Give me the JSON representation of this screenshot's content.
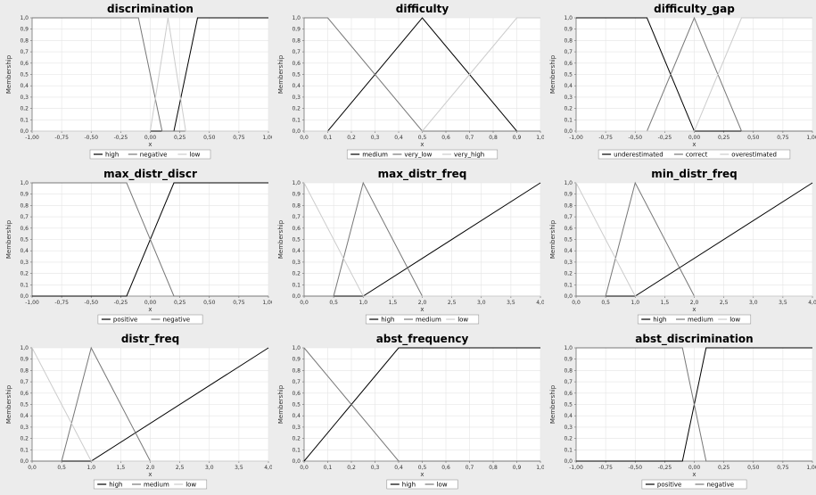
{
  "chart_data": [
    {
      "type": "line",
      "title": "discrimination",
      "xlabel": "x",
      "ylabel": "Membership",
      "xlim": [
        -1,
        1
      ],
      "ylim": [
        0,
        1
      ],
      "xticks": [
        "-1,00",
        "-0,75",
        "-0,50",
        "-0,25",
        "0,00",
        "0,25",
        "0,50",
        "0,75",
        "1,00"
      ],
      "yticks": [
        "0,0",
        "0,1",
        "0,2",
        "0,3",
        "0,4",
        "0,5",
        "0,6",
        "0,7",
        "0,8",
        "0,9",
        "1,0"
      ],
      "grid": true,
      "legend": "bottom",
      "series": [
        {
          "name": "high",
          "color": "#000000",
          "points": [
            [
              -1,
              0
            ],
            [
              0.2,
              0
            ],
            [
              0.4,
              1
            ],
            [
              1,
              1
            ]
          ]
        },
        {
          "name": "negative",
          "color": "#777777",
          "points": [
            [
              -1,
              1
            ],
            [
              -0.1,
              1
            ],
            [
              0.1,
              0
            ],
            [
              1,
              0
            ]
          ]
        },
        {
          "name": "low",
          "color": "#cccccc",
          "points": [
            [
              -1,
              0
            ],
            [
              0,
              0
            ],
            [
              0.15,
              1
            ],
            [
              0.3,
              0
            ],
            [
              1,
              0
            ]
          ]
        }
      ]
    },
    {
      "type": "line",
      "title": "difficulty",
      "xlabel": "x",
      "ylabel": "Membership",
      "xlim": [
        0,
        1
      ],
      "ylim": [
        0,
        1
      ],
      "xticks": [
        "0,0",
        "0,1",
        "0,2",
        "0,3",
        "0,4",
        "0,5",
        "0,6",
        "0,7",
        "0,8",
        "0,9",
        "1,0"
      ],
      "yticks": [
        "0,0",
        "0,1",
        "0,2",
        "0,3",
        "0,4",
        "0,5",
        "0,6",
        "0,7",
        "0,8",
        "0,9",
        "1,0"
      ],
      "grid": true,
      "legend": "bottom",
      "series": [
        {
          "name": "medium",
          "color": "#000000",
          "points": [
            [
              0,
              0
            ],
            [
              0.1,
              0
            ],
            [
              0.5,
              1
            ],
            [
              0.9,
              0
            ],
            [
              1,
              0
            ]
          ]
        },
        {
          "name": "very_low",
          "color": "#777777",
          "points": [
            [
              0,
              1
            ],
            [
              0.1,
              1
            ],
            [
              0.5,
              0
            ],
            [
              1,
              0
            ]
          ]
        },
        {
          "name": "very_high",
          "color": "#cccccc",
          "points": [
            [
              0,
              0
            ],
            [
              0.5,
              0
            ],
            [
              0.9,
              1
            ],
            [
              1,
              1
            ]
          ]
        }
      ]
    },
    {
      "type": "line",
      "title": "difficulty_gap",
      "xlabel": "x",
      "ylabel": "Membership",
      "xlim": [
        -1,
        1
      ],
      "ylim": [
        0,
        1
      ],
      "xticks": [
        "-1,00",
        "-0,75",
        "-0,50",
        "-0,25",
        "0,00",
        "0,25",
        "0,50",
        "0,75",
        "1,00"
      ],
      "yticks": [
        "0,0",
        "0,1",
        "0,2",
        "0,3",
        "0,4",
        "0,5",
        "0,6",
        "0,7",
        "0,8",
        "0,9",
        "1,0"
      ],
      "grid": true,
      "legend": "bottom",
      "series": [
        {
          "name": "underestimated",
          "color": "#000000",
          "points": [
            [
              -1,
              1
            ],
            [
              -0.4,
              1
            ],
            [
              0,
              0
            ],
            [
              1,
              0
            ]
          ]
        },
        {
          "name": "correct",
          "color": "#777777",
          "points": [
            [
              -1,
              0
            ],
            [
              -0.4,
              0
            ],
            [
              0,
              1
            ],
            [
              0.4,
              0
            ],
            [
              1,
              0
            ]
          ]
        },
        {
          "name": "overestimated",
          "color": "#cccccc",
          "points": [
            [
              -1,
              0
            ],
            [
              0,
              0
            ],
            [
              0.4,
              1
            ],
            [
              1,
              1
            ]
          ]
        }
      ]
    },
    {
      "type": "line",
      "title": "max_distr_discr",
      "xlabel": "x",
      "ylabel": "Membership",
      "xlim": [
        -1,
        1
      ],
      "ylim": [
        0,
        1
      ],
      "xticks": [
        "-1,00",
        "-0,75",
        "-0,50",
        "-0,25",
        "0,00",
        "0,25",
        "0,50",
        "0,75",
        "1,00"
      ],
      "yticks": [
        "0,0",
        "0,1",
        "0,2",
        "0,3",
        "0,4",
        "0,5",
        "0,6",
        "0,7",
        "0,8",
        "0,9",
        "1,0"
      ],
      "grid": true,
      "legend": "bottom",
      "series": [
        {
          "name": "positive",
          "color": "#000000",
          "points": [
            [
              -1,
              0
            ],
            [
              -0.2,
              0
            ],
            [
              0.2,
              1
            ],
            [
              1,
              1
            ]
          ]
        },
        {
          "name": "negative",
          "color": "#777777",
          "points": [
            [
              -1,
              1
            ],
            [
              -0.2,
              1
            ],
            [
              0.2,
              0
            ],
            [
              1,
              0
            ]
          ]
        }
      ]
    },
    {
      "type": "line",
      "title": "max_distr_freq",
      "xlabel": "x",
      "ylabel": "Membership",
      "xlim": [
        0,
        4
      ],
      "ylim": [
        0,
        1
      ],
      "xticks": [
        "0,0",
        "0,5",
        "1,0",
        "1,5",
        "2,0",
        "2,5",
        "3,0",
        "3,5",
        "4,0"
      ],
      "yticks": [
        "0,0",
        "0,1",
        "0,2",
        "0,3",
        "0,4",
        "0,5",
        "0,6",
        "0,7",
        "0,8",
        "0,9",
        "1,0"
      ],
      "grid": true,
      "legend": "bottom",
      "series": [
        {
          "name": "high",
          "color": "#000000",
          "points": [
            [
              0,
              0
            ],
            [
              1,
              0
            ],
            [
              4,
              1
            ]
          ]
        },
        {
          "name": "medium",
          "color": "#777777",
          "points": [
            [
              0,
              0
            ],
            [
              0.5,
              0
            ],
            [
              1,
              1
            ],
            [
              2,
              0
            ],
            [
              4,
              0
            ]
          ]
        },
        {
          "name": "low",
          "color": "#cccccc",
          "points": [
            [
              0,
              1
            ],
            [
              1,
              0
            ],
            [
              4,
              0
            ]
          ]
        }
      ]
    },
    {
      "type": "line",
      "title": "min_distr_freq",
      "xlabel": "x",
      "ylabel": "Membership",
      "xlim": [
        0,
        4
      ],
      "ylim": [
        0,
        1
      ],
      "xticks": [
        "0,0",
        "0,5",
        "1,0",
        "1,5",
        "2,0",
        "2,5",
        "3,0",
        "3,5",
        "4,0"
      ],
      "yticks": [
        "0,0",
        "0,1",
        "0,2",
        "0,3",
        "0,4",
        "0,5",
        "0,6",
        "0,7",
        "0,8",
        "0,9",
        "1,0"
      ],
      "grid": true,
      "legend": "bottom",
      "series": [
        {
          "name": "high",
          "color": "#000000",
          "points": [
            [
              0,
              0
            ],
            [
              1,
              0
            ],
            [
              4,
              1
            ]
          ]
        },
        {
          "name": "medium",
          "color": "#777777",
          "points": [
            [
              0,
              0
            ],
            [
              0.5,
              0
            ],
            [
              1,
              1
            ],
            [
              2,
              0
            ],
            [
              4,
              0
            ]
          ]
        },
        {
          "name": "low",
          "color": "#cccccc",
          "points": [
            [
              0,
              1
            ],
            [
              1,
              0
            ],
            [
              4,
              0
            ]
          ]
        }
      ]
    },
    {
      "type": "line",
      "title": "distr_freq",
      "xlabel": "x",
      "ylabel": "Membership",
      "xlim": [
        0,
        4
      ],
      "ylim": [
        0,
        1
      ],
      "xticks": [
        "0,0",
        "0,5",
        "1,0",
        "1,5",
        "2,0",
        "2,5",
        "3,0",
        "3,5",
        "4,0"
      ],
      "yticks": [
        "0,0",
        "0,1",
        "0,2",
        "0,3",
        "0,4",
        "0,5",
        "0,6",
        "0,7",
        "0,8",
        "0,9",
        "1,0"
      ],
      "grid": true,
      "legend": "bottom",
      "series": [
        {
          "name": "high",
          "color": "#000000",
          "points": [
            [
              0,
              0
            ],
            [
              1,
              0
            ],
            [
              4,
              1
            ]
          ]
        },
        {
          "name": "medium",
          "color": "#777777",
          "points": [
            [
              0,
              0
            ],
            [
              0.5,
              0
            ],
            [
              1,
              1
            ],
            [
              2,
              0
            ],
            [
              4,
              0
            ]
          ]
        },
        {
          "name": "low",
          "color": "#cccccc",
          "points": [
            [
              0,
              1
            ],
            [
              1,
              0
            ],
            [
              4,
              0
            ]
          ]
        }
      ]
    },
    {
      "type": "line",
      "title": "abst_frequency",
      "xlabel": "x",
      "ylabel": "Membership",
      "xlim": [
        0,
        1
      ],
      "ylim": [
        0,
        1
      ],
      "xticks": [
        "0,0",
        "0,1",
        "0,2",
        "0,3",
        "0,4",
        "0,5",
        "0,6",
        "0,7",
        "0,8",
        "0,9",
        "1,0"
      ],
      "yticks": [
        "0,0",
        "0,1",
        "0,2",
        "0,3",
        "0,4",
        "0,5",
        "0,6",
        "0,7",
        "0,8",
        "0,9",
        "1,0"
      ],
      "grid": true,
      "legend": "bottom",
      "series": [
        {
          "name": "high",
          "color": "#000000",
          "points": [
            [
              0,
              0
            ],
            [
              0.4,
              1
            ],
            [
              1,
              1
            ]
          ]
        },
        {
          "name": "low",
          "color": "#777777",
          "points": [
            [
              0,
              1
            ],
            [
              0.4,
              0
            ],
            [
              1,
              0
            ]
          ]
        }
      ]
    },
    {
      "type": "line",
      "title": "abst_discrimination",
      "xlabel": "x",
      "ylabel": "Membership",
      "xlim": [
        -1,
        1
      ],
      "ylim": [
        0,
        1
      ],
      "xticks": [
        "-1,00",
        "-0,75",
        "-0,50",
        "-0,25",
        "0,00",
        "0,25",
        "0,50",
        "0,75",
        "1,00"
      ],
      "yticks": [
        "0,0",
        "0,1",
        "0,2",
        "0,3",
        "0,4",
        "0,5",
        "0,6",
        "0,7",
        "0,8",
        "0,9",
        "1,0"
      ],
      "grid": true,
      "legend": "bottom",
      "series": [
        {
          "name": "positive",
          "color": "#000000",
          "points": [
            [
              -1,
              0
            ],
            [
              -0.1,
              0
            ],
            [
              0.1,
              1
            ],
            [
              1,
              1
            ]
          ]
        },
        {
          "name": "negative",
          "color": "#777777",
          "points": [
            [
              -1,
              1
            ],
            [
              -0.1,
              1
            ],
            [
              0.1,
              0
            ],
            [
              1,
              0
            ]
          ]
        }
      ]
    }
  ]
}
